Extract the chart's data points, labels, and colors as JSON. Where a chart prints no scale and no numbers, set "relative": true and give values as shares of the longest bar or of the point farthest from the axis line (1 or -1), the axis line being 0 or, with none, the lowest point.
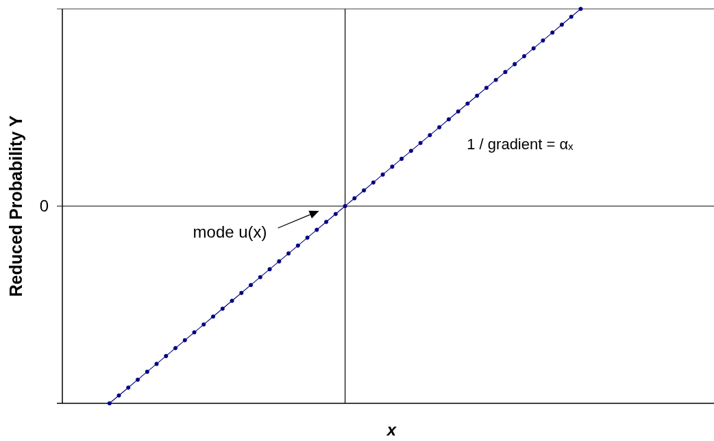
{
  "chart_data": {
    "type": "line",
    "xlabel": "x",
    "ylabel": "Reduced Probability Y",
    "relative": true,
    "marker": "circle",
    "categories": [
      null,
      null,
      null,
      null,
      null,
      null,
      null,
      null,
      null,
      null,
      null,
      null,
      null,
      null,
      null,
      null,
      null,
      null,
      null,
      null,
      null,
      null,
      null,
      null,
      null,
      null,
      null,
      null,
      null,
      null,
      null,
      null,
      null,
      null,
      null,
      null,
      null,
      null,
      null,
      null,
      null,
      null,
      null,
      null,
      null,
      null,
      null,
      null,
      null,
      null,
      null,
      null,
      null,
      null,
      null,
      null,
      null,
      null,
      null,
      null,
      null,
      null,
      null,
      null,
      null,
      null,
      null,
      null,
      null,
      null
    ],
    "series": [
      {
        "color": "#000080",
        "values": [
          null,
          null,
          null,
          null,
          null,
          -1,
          -0.96,
          -0.92,
          -0.88,
          -0.84,
          -0.8,
          -0.76,
          -0.72,
          -0.68,
          -0.64,
          -0.6,
          -0.56,
          -0.52,
          -0.48,
          -0.44,
          -0.4,
          -0.36,
          -0.32,
          -0.28,
          -0.24,
          -0.2,
          -0.16,
          -0.12,
          -0.08,
          -0.04,
          0,
          0.04,
          0.08,
          0.12,
          0.16,
          0.2,
          0.24,
          0.28,
          0.32,
          0.36,
          0.4,
          0.44,
          0.48,
          0.52,
          0.56,
          0.6,
          0.64,
          0.68,
          0.72,
          0.76,
          0.8,
          0.84,
          0.88,
          0.92,
          0.96,
          1,
          null,
          null,
          null,
          null,
          null,
          null,
          null,
          null,
          null,
          null,
          null,
          null,
          null,
          null
        ]
      }
    ],
    "ref_lines": [
      {
        "axis": "y",
        "value": 0,
        "label": "0"
      }
    ],
    "annotations": [
      {
        "text": "mode u(x)",
        "y": 0
      },
      "1 / gradient = αₓ"
    ]
  }
}
